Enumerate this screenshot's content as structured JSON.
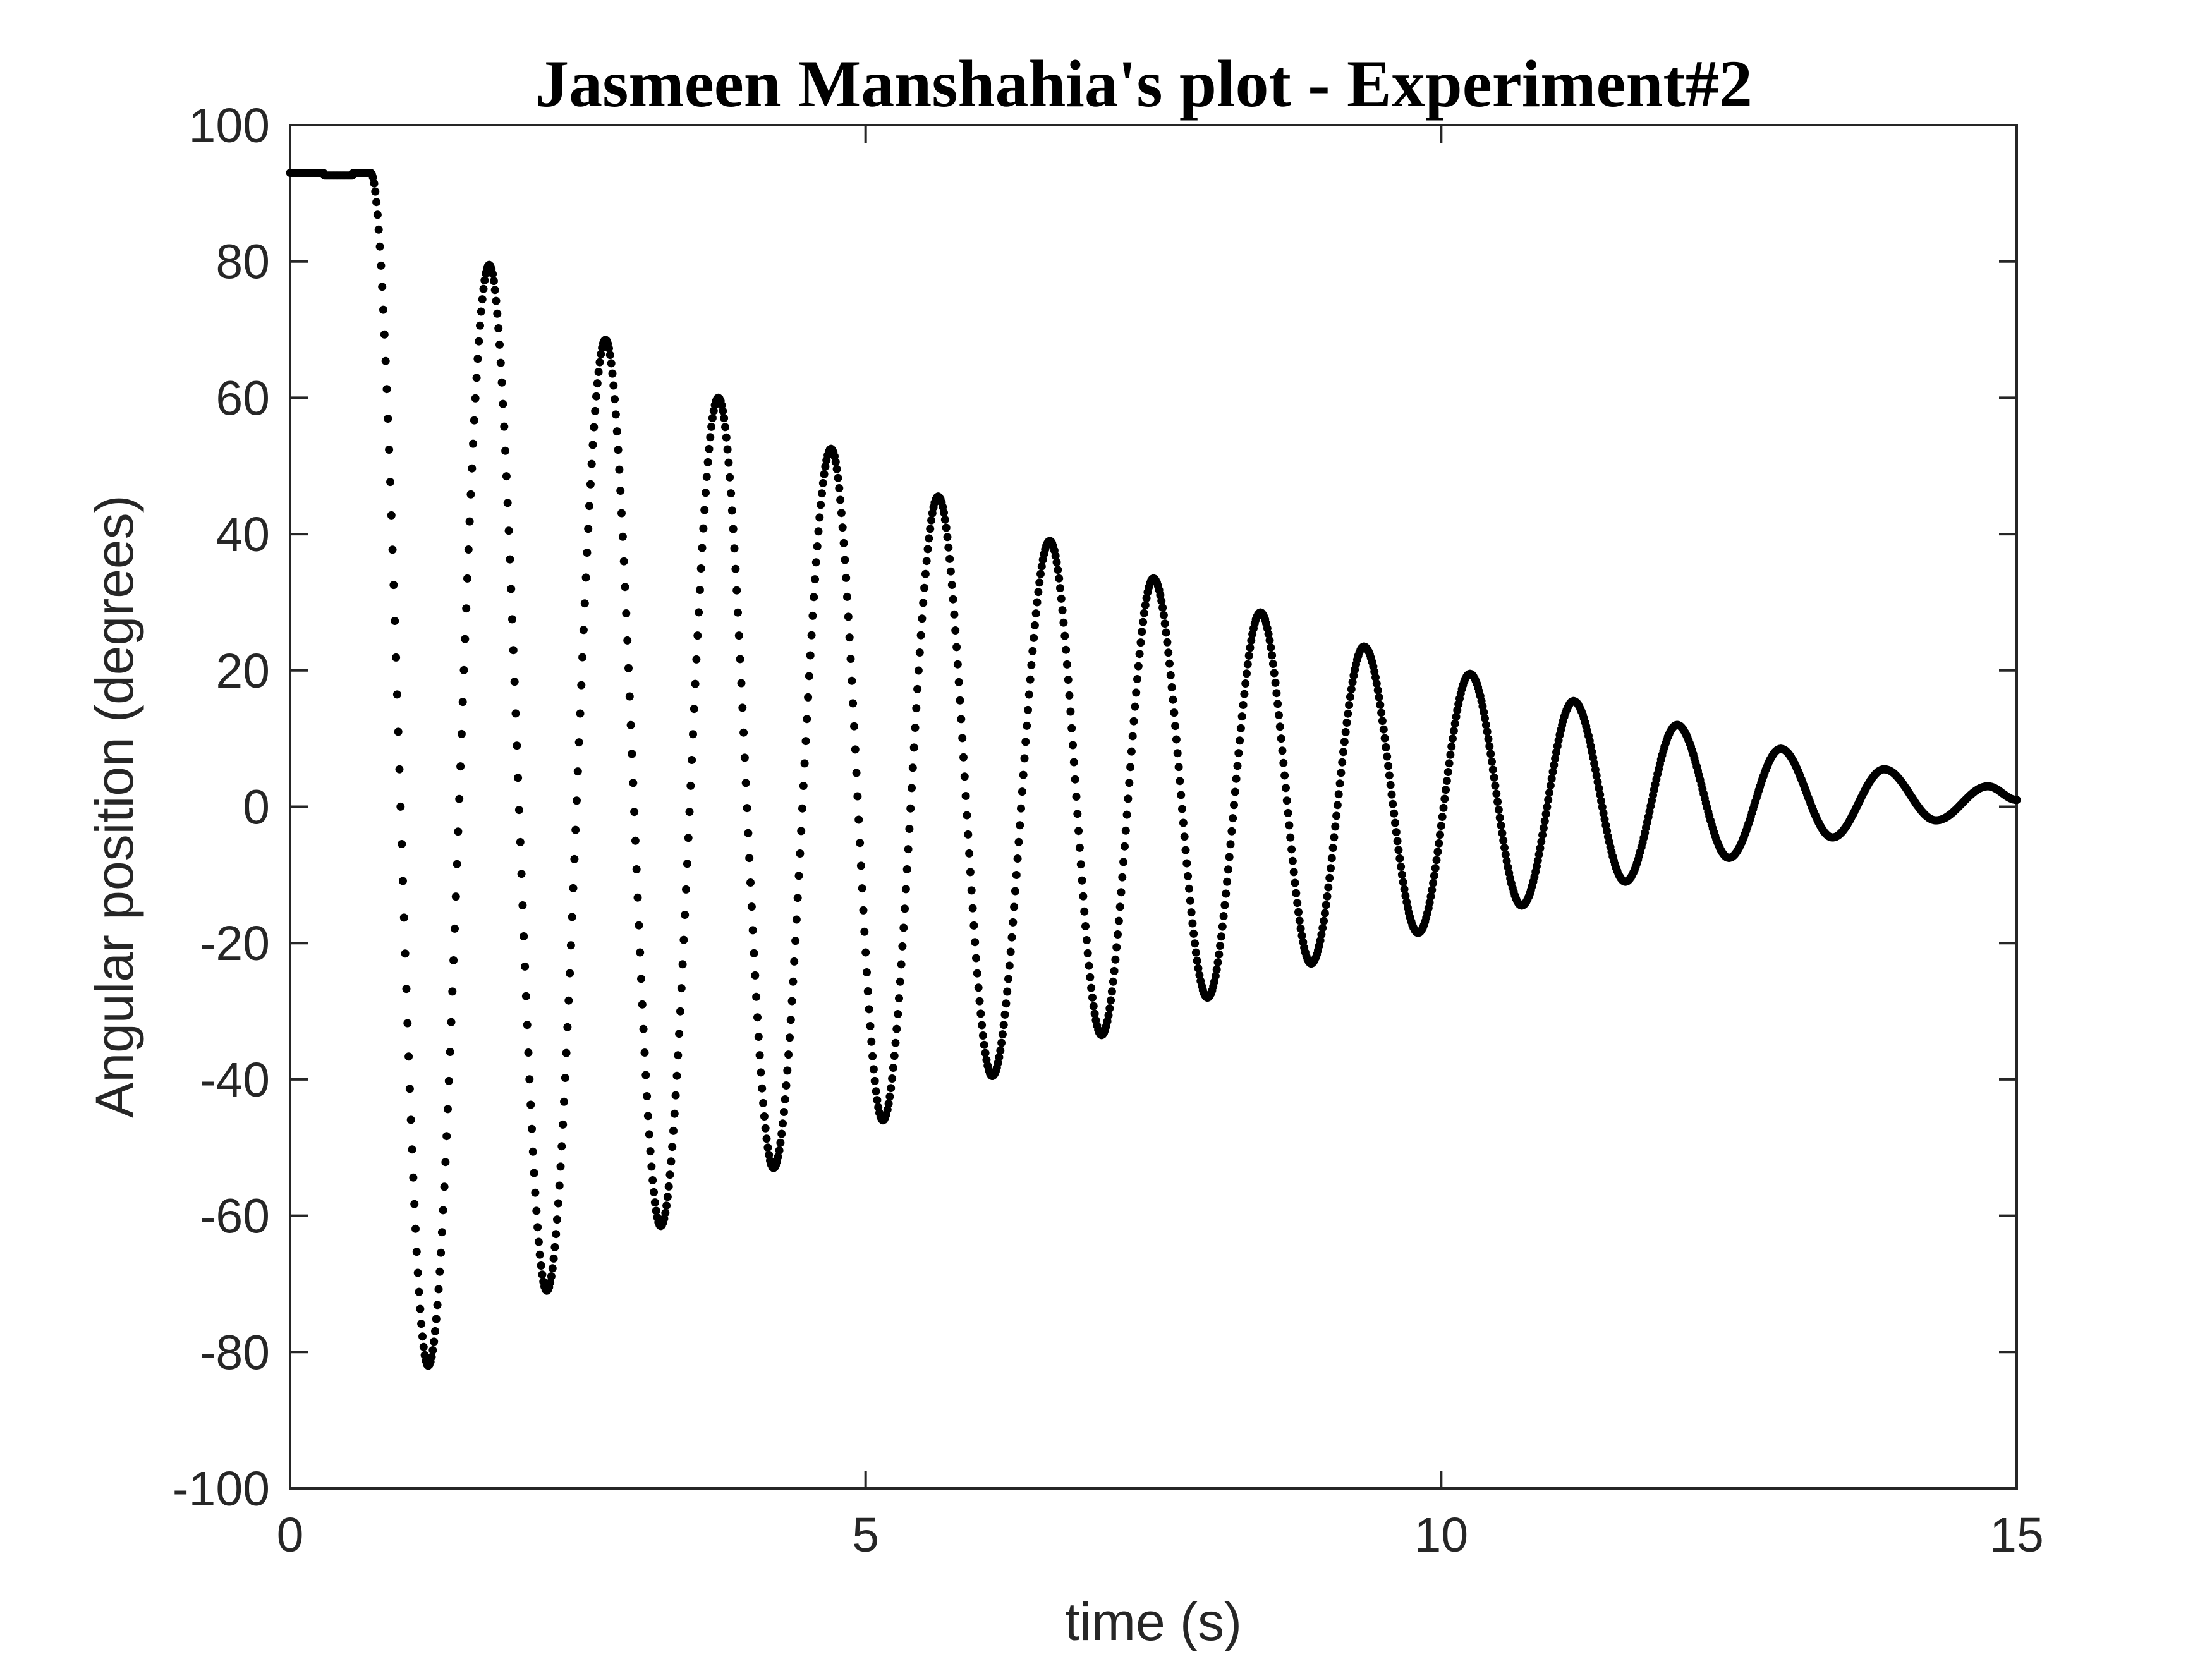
{
  "chart_data": {
    "type": "scatter",
    "title": "Jasmeen Manshahia's plot - Experiment#2",
    "xlabel": "time (s)",
    "ylabel": "Angular position (degrees)",
    "xlim": [
      0,
      15
    ],
    "ylim": [
      -100,
      100
    ],
    "xticks": [
      0,
      5,
      10,
      15
    ],
    "xtick_labels": [
      "0",
      "5",
      "10",
      "15"
    ],
    "yticks": [
      100,
      80,
      60,
      40,
      20,
      0,
      -20,
      -40,
      -60,
      -80,
      -100
    ],
    "ytick_labels": [
      "100",
      "80",
      "60",
      "40",
      "20",
      "0",
      "-20",
      "-40",
      "-60",
      "-80",
      "-100"
    ],
    "grid": false,
    "marker_color": "#000000",
    "series": [
      {
        "name": "angular position",
        "initial_hold": {
          "t_start": 0,
          "t_end": 0.7,
          "value": 93
        },
        "release_time": 0.7,
        "extrema": [
          {
            "t": 0.7,
            "y": 93
          },
          {
            "t": 1.2,
            "y": -82
          },
          {
            "t": 1.73,
            "y": 79.5
          },
          {
            "t": 2.23,
            "y": -71
          },
          {
            "t": 2.74,
            "y": 68.5
          },
          {
            "t": 3.22,
            "y": -61.5
          },
          {
            "t": 3.72,
            "y": 60
          },
          {
            "t": 4.2,
            "y": -53
          },
          {
            "t": 4.7,
            "y": 52.5
          },
          {
            "t": 5.15,
            "y": -46
          },
          {
            "t": 5.63,
            "y": 45.5
          },
          {
            "t": 6.1,
            "y": -39.5
          },
          {
            "t": 6.6,
            "y": 39
          },
          {
            "t": 7.05,
            "y": -33.5
          },
          {
            "t": 7.5,
            "y": 33.5
          },
          {
            "t": 7.97,
            "y": -28
          },
          {
            "t": 8.43,
            "y": 28.5
          },
          {
            "t": 8.87,
            "y": -23
          },
          {
            "t": 9.33,
            "y": 23.5
          },
          {
            "t": 9.8,
            "y": -18.5
          },
          {
            "t": 10.25,
            "y": 19.5
          },
          {
            "t": 10.7,
            "y": -14.5
          },
          {
            "t": 11.15,
            "y": 15.5
          },
          {
            "t": 11.6,
            "y": -11
          },
          {
            "t": 12.05,
            "y": 12
          },
          {
            "t": 12.5,
            "y": -7.5
          },
          {
            "t": 12.95,
            "y": 8.5
          },
          {
            "t": 13.4,
            "y": -4.5
          },
          {
            "t": 13.85,
            "y": 5.5
          },
          {
            "t": 14.3,
            "y": -2
          },
          {
            "t": 14.75,
            "y": 3
          },
          {
            "t": 15.0,
            "y": 1
          }
        ],
        "sample_interval_s": 0.01
      }
    ]
  }
}
